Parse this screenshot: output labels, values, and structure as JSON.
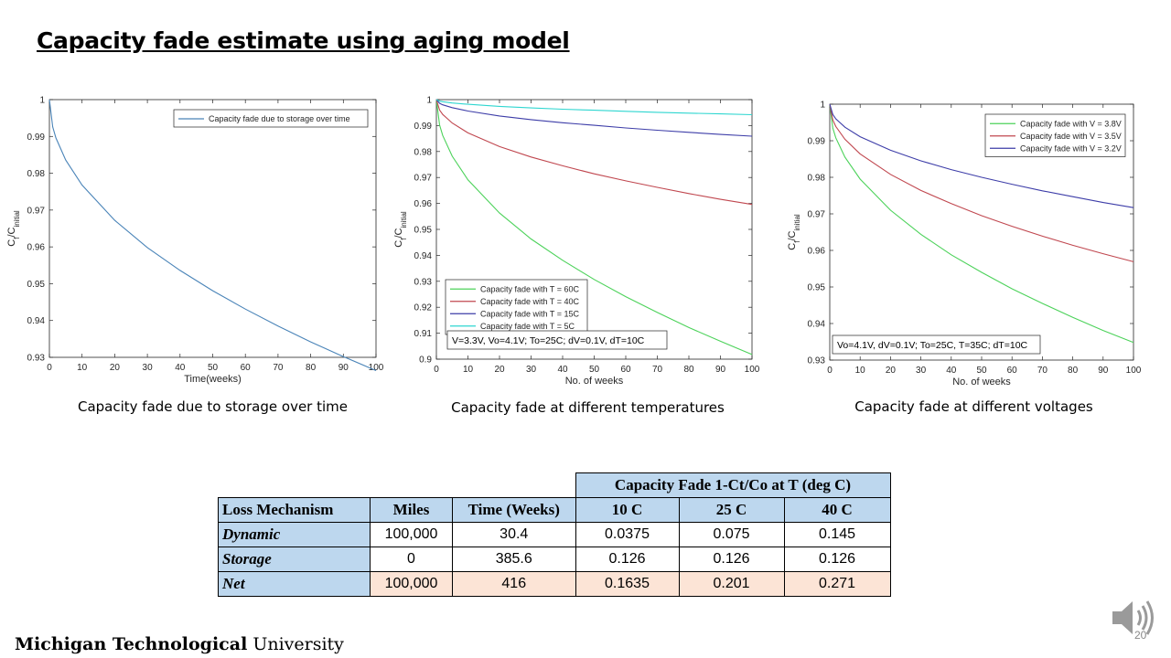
{
  "slide": {
    "title": "Capacity fade estimate using aging model",
    "footer_bold": "Michigan Technological",
    "footer_regular": " University",
    "page_number": "20"
  },
  "captions": [
    "Capacity fade due to storage over time",
    "Capacity fade at different temperatures",
    "Capacity fade at different voltages"
  ],
  "chart_data": [
    {
      "type": "line",
      "xlabel": "Time(weeks)",
      "ylabel": "C_f/C_initial",
      "xlim": [
        0,
        100
      ],
      "ylim": [
        0.93,
        1
      ],
      "xticks": [
        0,
        10,
        20,
        30,
        40,
        50,
        60,
        70,
        80,
        90,
        100
      ],
      "yticks": [
        0.93,
        0.94,
        0.95,
        0.96,
        0.97,
        0.98,
        0.99,
        1
      ],
      "legend_position": "top-right",
      "note": "",
      "series": [
        {
          "name": "Capacity fade due to storage over time",
          "color": "#4a84b8",
          "x": [
            0,
            1,
            2,
            5,
            10,
            20,
            30,
            40,
            50,
            60,
            70,
            80,
            90,
            100
          ],
          "y": [
            1,
            0.9926,
            0.9896,
            0.9836,
            0.9768,
            0.9672,
            0.9598,
            0.9536,
            0.9481,
            0.9431,
            0.9385,
            0.9342,
            0.9302,
            0.9264
          ]
        }
      ]
    },
    {
      "type": "line",
      "xlabel": "No. of weeks",
      "ylabel": "C_f/C_initial",
      "xlim": [
        0,
        100
      ],
      "ylim": [
        0.9,
        1
      ],
      "xticks": [
        0,
        10,
        20,
        30,
        40,
        50,
        60,
        70,
        80,
        90,
        100
      ],
      "yticks": [
        0.9,
        0.91,
        0.92,
        0.93,
        0.94,
        0.95,
        0.96,
        0.97,
        0.98,
        0.99,
        1
      ],
      "legend_position": "bottom-left",
      "note": "V=3.3V, Vo=4.1V; To=25C; dV=0.1V, dT=10C",
      "series": [
        {
          "name": "Capacity fade with T = 60C",
          "color": "#4cd25a",
          "x": [
            0,
            1,
            2,
            5,
            10,
            20,
            30,
            40,
            50,
            60,
            70,
            80,
            90,
            100
          ],
          "y": [
            1,
            0.9902,
            0.9862,
            0.9782,
            0.9691,
            0.9563,
            0.9463,
            0.9381,
            0.9307,
            0.9241,
            0.918,
            0.9122,
            0.9069,
            0.9018
          ]
        },
        {
          "name": "Capacity fade with T = 40C",
          "color": "#c0474f",
          "x": [
            0,
            1,
            2,
            5,
            10,
            20,
            30,
            40,
            50,
            60,
            70,
            80,
            90,
            100
          ],
          "y": [
            1,
            0.996,
            0.9943,
            0.991,
            0.9872,
            0.9819,
            0.9779,
            0.9745,
            0.9714,
            0.9687,
            0.9662,
            0.9638,
            0.9616,
            0.9596
          ]
        },
        {
          "name": "Capacity fade with T = 15C",
          "color": "#3d3da8",
          "x": [
            0,
            1,
            2,
            5,
            10,
            20,
            30,
            40,
            50,
            60,
            70,
            80,
            90,
            100
          ],
          "y": [
            1,
            0.9986,
            0.998,
            0.9969,
            0.9956,
            0.9937,
            0.9923,
            0.9911,
            0.9901,
            0.9891,
            0.9882,
            0.9874,
            0.9866,
            0.9859
          ]
        },
        {
          "name": "Capacity fade with T = 5C",
          "color": "#2ed6d0",
          "x": [
            0,
            1,
            2,
            5,
            10,
            20,
            30,
            40,
            50,
            60,
            70,
            80,
            90,
            100
          ],
          "y": [
            1,
            0.9994,
            0.9992,
            0.9987,
            0.9982,
            0.9974,
            0.9968,
            0.9963,
            0.9959,
            0.9955,
            0.9951,
            0.9948,
            0.9945,
            0.9942
          ]
        }
      ]
    },
    {
      "type": "line",
      "xlabel": "No. of weeks",
      "ylabel": "C_f/C_initial",
      "xlim": [
        0,
        100
      ],
      "ylim": [
        0.93,
        1
      ],
      "xticks": [
        0,
        10,
        20,
        30,
        40,
        50,
        60,
        70,
        80,
        90,
        100
      ],
      "yticks": [
        0.93,
        0.94,
        0.95,
        0.96,
        0.97,
        0.98,
        0.99,
        1
      ],
      "legend_position": "top-right",
      "note": "Vo=4.1V, dV=0.1V; To=25C, T=35C; dT=10C",
      "series": [
        {
          "name": "Capacity fade with V = 3.8V",
          "color": "#4cd25a",
          "x": [
            0,
            1,
            2,
            5,
            10,
            20,
            30,
            40,
            50,
            60,
            70,
            80,
            90,
            100
          ],
          "y": [
            1,
            0.9935,
            0.9908,
            0.9855,
            0.9795,
            0.971,
            0.9644,
            0.9588,
            0.954,
            0.9495,
            0.9455,
            0.9417,
            0.9381,
            0.9348
          ]
        },
        {
          "name": "Capacity fade with V = 3.5V",
          "color": "#c0474f",
          "x": [
            0,
            1,
            2,
            5,
            10,
            20,
            30,
            40,
            50,
            60,
            70,
            80,
            90,
            100
          ],
          "y": [
            1,
            0.9957,
            0.9939,
            0.9904,
            0.9864,
            0.9808,
            0.9764,
            0.9728,
            0.9695,
            0.9666,
            0.9639,
            0.9614,
            0.9591,
            0.9569
          ]
        },
        {
          "name": "Capacity fade with V = 3.2V",
          "color": "#3d3da8",
          "x": [
            0,
            1,
            2,
            5,
            10,
            20,
            30,
            40,
            50,
            60,
            70,
            80,
            90,
            100
          ],
          "y": [
            1,
            0.9972,
            0.996,
            0.9937,
            0.9911,
            0.9874,
            0.9845,
            0.9821,
            0.98,
            0.9781,
            0.9763,
            0.9747,
            0.9731,
            0.9717
          ]
        }
      ]
    }
  ],
  "table": {
    "group_header": "Capacity Fade 1-Ct/Co at T (deg C)",
    "headers": [
      "Loss Mechanism",
      "Miles",
      "Time (Weeks)",
      "10 C",
      "25 C",
      "40 C"
    ],
    "rows": [
      {
        "label": "Dynamic",
        "miles": "100,000",
        "time": "30.4",
        "c10": "0.0375",
        "c25": "0.075",
        "c40": "0.145"
      },
      {
        "label": "Storage",
        "miles": "0",
        "time": "385.6",
        "c10": "0.126",
        "c25": "0.126",
        "c40": "0.126"
      },
      {
        "label": "Net",
        "miles": "100,000",
        "time": "416",
        "c10": "0.1635",
        "c25": "0.201",
        "c40": "0.271"
      }
    ]
  }
}
